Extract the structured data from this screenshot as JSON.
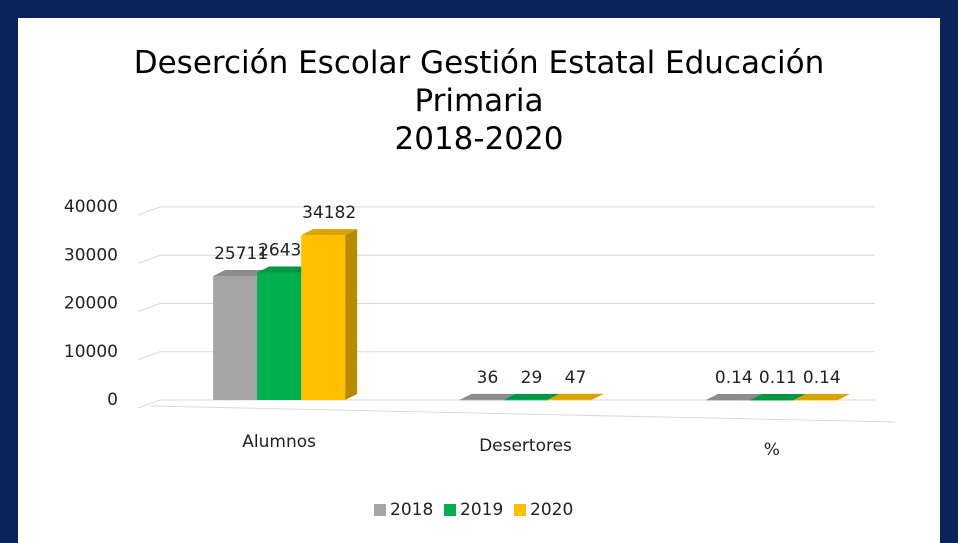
{
  "chart_data": {
    "type": "bar3d",
    "title": "Deserción Escolar Gestión Estatal Educación Primaria",
    "subtitle": "2018-2020",
    "categories": [
      "Alumnos",
      "Desertores",
      "%"
    ],
    "series": [
      {
        "name": "2018",
        "color": "#a5a5a5",
        "values": [
          25711,
          36,
          0.14
        ]
      },
      {
        "name": "2019",
        "color": "#00b050",
        "values": [
          26432,
          29,
          0.11
        ]
      },
      {
        "name": "2020",
        "color": "#ffc000",
        "values": [
          34182,
          47,
          0.14
        ]
      }
    ],
    "ylim": [
      0,
      40000
    ],
    "yticks": [
      0,
      10000,
      20000,
      30000,
      40000
    ],
    "grid": true,
    "legend": "bottom"
  }
}
